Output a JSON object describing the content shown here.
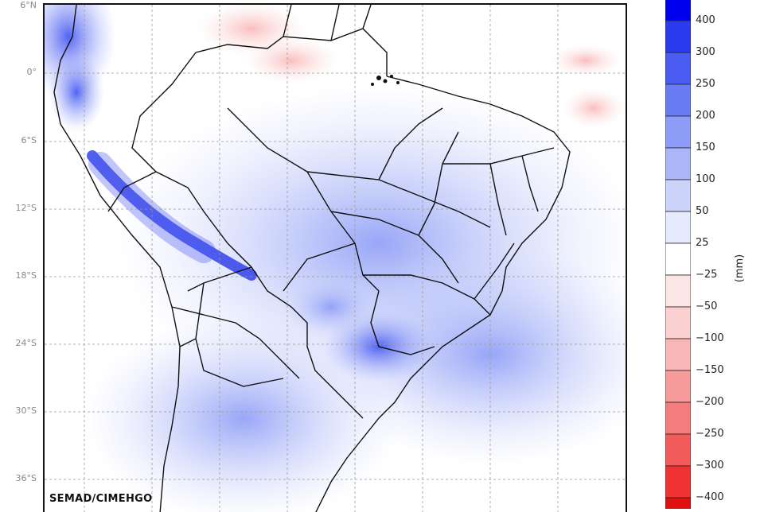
{
  "map": {
    "lat_labels": [
      "6°N",
      "0°",
      "6°S",
      "12°S",
      "18°S",
      "24°S",
      "30°S",
      "36°S"
    ],
    "credit": "SEMAD/CIMEHGO"
  },
  "colorbar": {
    "unit": "(mm)",
    "ticks": [
      "400",
      "300",
      "250",
      "200",
      "150",
      "100",
      "50",
      "25",
      "−25",
      "−50",
      "−100",
      "−150",
      "−200",
      "−250",
      "−300",
      "−400"
    ],
    "colors": [
      "#0000ee",
      "#2a3bf0",
      "#4a5cf2",
      "#6a7cf4",
      "#8d9cf6",
      "#aab6f8",
      "#cbd3fa",
      "#e6eafd",
      "#ffffff",
      "#fde6e6",
      "#fbd0d0",
      "#f9b6b6",
      "#f79a9a",
      "#f57c7c",
      "#f35a5a",
      "#f03232",
      "#e01010"
    ]
  }
}
